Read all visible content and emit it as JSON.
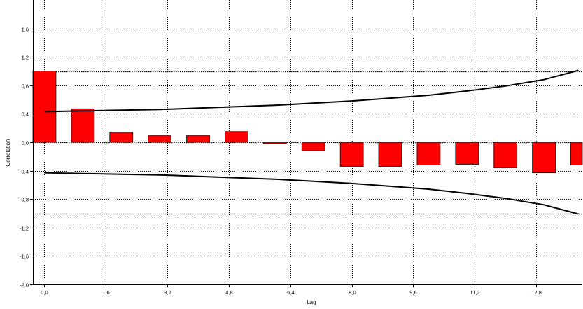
{
  "chart_data": {
    "type": "bar",
    "title": "",
    "xlabel": "Lag",
    "ylabel": "Correlation",
    "xlim": [
      -0.3,
      14.0
    ],
    "ylim": [
      -2.0,
      2.0
    ],
    "xticks": [
      0.0,
      1.6,
      3.2,
      4.8,
      6.4,
      8.0,
      9.6,
      11.2,
      12.8
    ],
    "xtick_labels": [
      "0,0",
      "1,6",
      "3,2",
      "4,8",
      "6,4",
      "8,0",
      "9,6",
      "11,2",
      "12,8"
    ],
    "yticks": [
      -2.0,
      -1.6,
      -1.2,
      -0.8,
      -0.4,
      0.0,
      0.4,
      0.8,
      1.2,
      1.6
    ],
    "ytick_labels": [
      "-2,0",
      "-1,6",
      "-1,2",
      "-0,8",
      "-0,4",
      "0,0",
      "0,4",
      "0,8",
      "1,2",
      "1,6"
    ],
    "grid": true,
    "bar_color": "#ff0000",
    "bar_width": 0.6,
    "reference_lines": [
      1.0,
      -1.0
    ],
    "series": [
      {
        "lags": [
          0,
          1,
          2,
          3,
          4,
          5,
          6,
          7,
          8,
          9,
          10,
          11,
          12,
          13,
          14
        ],
        "values": [
          1.0,
          0.47,
          0.14,
          0.1,
          0.1,
          0.15,
          -0.02,
          -0.12,
          -0.34,
          -0.34,
          -0.32,
          -0.31,
          -0.36,
          -0.43,
          -0.32
        ]
      }
    ],
    "confidence_band": {
      "x": [
        0,
        1,
        2,
        3,
        4,
        5,
        6,
        7,
        8,
        9,
        10,
        11,
        12,
        13,
        13.9
      ],
      "upper": [
        0.43,
        0.44,
        0.45,
        0.46,
        0.48,
        0.5,
        0.52,
        0.55,
        0.58,
        0.62,
        0.66,
        0.72,
        0.79,
        0.88,
        1.01
      ],
      "lower": [
        -0.43,
        -0.44,
        -0.45,
        -0.46,
        -0.48,
        -0.5,
        -0.52,
        -0.55,
        -0.58,
        -0.62,
        -0.66,
        -0.72,
        -0.79,
        -0.88,
        -1.01
      ]
    }
  }
}
